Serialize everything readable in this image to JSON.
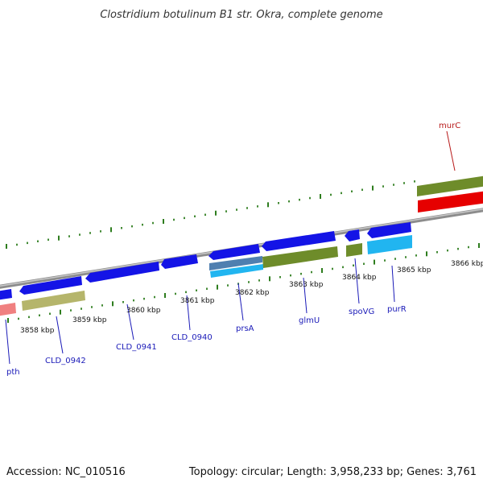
{
  "title": "Clostridium botulinum B1 str. Okra, complete genome",
  "footer": {
    "accession": "Accession: NC_010516",
    "summary": "Topology: circular; Length: 3,958,233 bp; Genes: 3,761"
  },
  "colors": {
    "backbone": "#8c8c8c",
    "tick": "#2e7d1e",
    "forward_cds": "#1414e6",
    "reverse_cds": "#1414e6",
    "olive": "#6e8c2a",
    "khaki": "#b5b56b",
    "red": "#e60000",
    "cyan": "#21b5f0",
    "pink": "#f08080",
    "steel": "#4f7fb0"
  },
  "axis": {
    "tick_labels": [
      "3858 kbp",
      "3859 kbp",
      "3860 kbp",
      "3861 kbp",
      "3862 kbp",
      "3863 kbp",
      "3864 kbp",
      "3865 kbp",
      "3866 kbp"
    ]
  },
  "genes": [
    {
      "name": "pth",
      "label_color": "blue"
    },
    {
      "name": "CLD_0942",
      "label_color": "blue"
    },
    {
      "name": "CLD_0941",
      "label_color": "blue"
    },
    {
      "name": "CLD_0940",
      "label_color": "blue"
    },
    {
      "name": "prsA",
      "label_color": "blue"
    },
    {
      "name": "glmU",
      "label_color": "blue"
    },
    {
      "name": "spoVG",
      "label_color": "blue"
    },
    {
      "name": "purR",
      "label_color": "blue"
    },
    {
      "name": "murC",
      "label_color": "red"
    }
  ]
}
